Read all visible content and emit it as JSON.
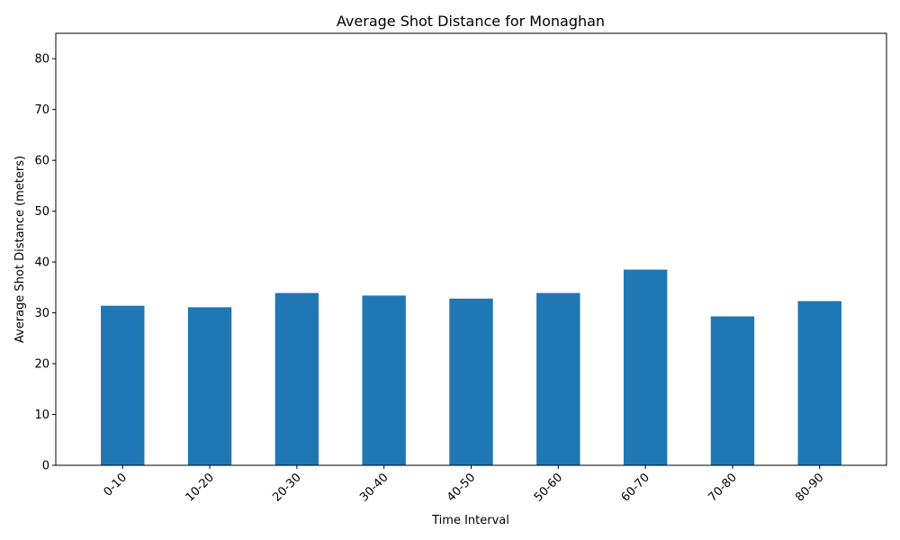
{
  "chart_data": {
    "type": "bar",
    "title": "Average Shot Distance for Monaghan",
    "xlabel": "Time Interval",
    "ylabel": "Average Shot Distance (meters)",
    "categories": [
      "0-10",
      "10-20",
      "20-30",
      "30-40",
      "40-50",
      "50-60",
      "60-70",
      "70-80",
      "80-90"
    ],
    "values": [
      31.4,
      31.1,
      33.9,
      33.4,
      32.8,
      33.9,
      38.5,
      29.3,
      32.3
    ],
    "ylim": [
      0,
      85
    ],
    "yticks": [
      0,
      10,
      20,
      30,
      40,
      50,
      60,
      70,
      80
    ],
    "grid": false,
    "legend": "none",
    "bar_color": "#1f77b4"
  }
}
